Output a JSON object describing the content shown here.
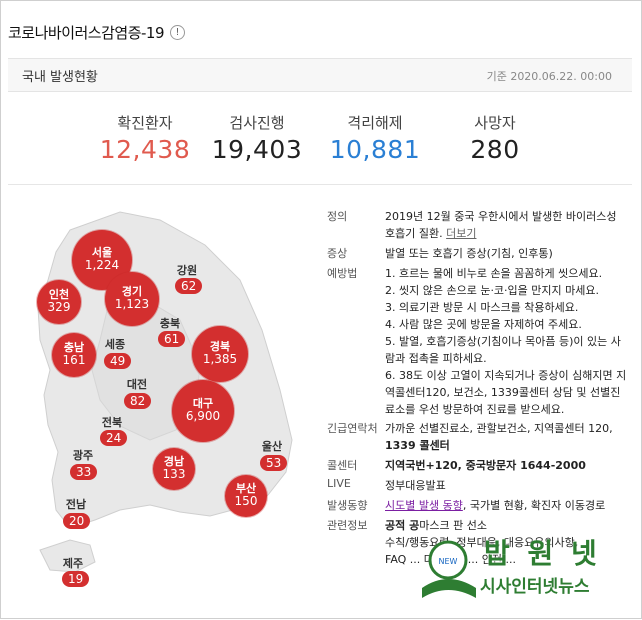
{
  "header": {
    "title": "코로나바이러스감염증-19",
    "info_icon": "!"
  },
  "subhead": {
    "label": "국내 발생현황",
    "date": "기준 2020.06.22. 00:00"
  },
  "stats": [
    {
      "label": "확진환자",
      "value": "12,438",
      "color": "#e05a4e"
    },
    {
      "label": "검사진행",
      "value": "19,403",
      "color": "#222222"
    },
    {
      "label": "격리해제",
      "value": "10,881",
      "color": "#2a7fd4"
    },
    {
      "label": "사망자",
      "value": "280",
      "color": "#222222"
    }
  ],
  "map": {
    "bubbles": [
      {
        "name": "서울",
        "count": "1,224"
      },
      {
        "name": "인천",
        "count": "329"
      },
      {
        "name": "경기",
        "count": "1,123"
      },
      {
        "name": "충남",
        "count": "161"
      },
      {
        "name": "경북",
        "count": "1,385"
      },
      {
        "name": "대구",
        "count": "6,900"
      },
      {
        "name": "경남",
        "count": "133"
      },
      {
        "name": "부산",
        "count": "150"
      }
    ],
    "badges": [
      {
        "name": "강원",
        "count": "62"
      },
      {
        "name": "충북",
        "count": "61"
      },
      {
        "name": "세종",
        "count": "49"
      },
      {
        "name": "대전",
        "count": "82"
      },
      {
        "name": "전북",
        "count": "24"
      },
      {
        "name": "울산",
        "count": "53"
      },
      {
        "name": "광주",
        "count": "33"
      },
      {
        "name": "전남",
        "count": "20"
      },
      {
        "name": "제주",
        "count": "19"
      }
    ]
  },
  "info": {
    "definition": {
      "key": "정의",
      "text": "2019년 12월 중국 우한시에서 발생한 바이러스성 호흡기 질환.",
      "more": "더보기"
    },
    "symptom": {
      "key": "증상",
      "text": "발열 또는 호흡기 증상(기침, 인후통)"
    },
    "prevention": {
      "key": "예방법",
      "items": [
        "1. 흐르는 물에 비누로 손을 꼼꼼하게 씻으세요.",
        "2. 씻지 않은 손으로 눈·코·입을 만지지 마세요.",
        "3. 의료기관 방문 시 마스크를 착용하세요.",
        "4. 사람 많은 곳에 방문을 자제하여 주세요.",
        "5. 발열, 호흡기증상(기침이나 목아픔 등)이 있는 사람과 접촉을 피하세요.",
        "6. 38도 이상 고열이 지속되거나 증상이 심해지면 지역콜센터120, 보건소, 1339콜센터 상담 및 선별진료소를 우선 방문하여 진료를 받으세요."
      ]
    },
    "contact": {
      "key": "긴급연락처",
      "text": "가까운 선별진료소, 관할보건소, 지역콜센터 120,",
      "bold": "1339 콜센터"
    },
    "callcenter": {
      "key": "콜센터",
      "text": "지역국번+120, 중국방문자 1644-2000"
    },
    "live": {
      "key": "LIVE",
      "text": "정부대응발표"
    },
    "trend": {
      "key": "발생동향",
      "link": "시도별 발생 동향",
      "rest": ", 국가별 현황, 확진자 이동경로"
    },
    "related": {
      "key": "관련정보",
      "line1a": "공적 공",
      "line1b": "마스크 ",
      "line1c": "판 ",
      "line1d": "선",
      "line1e": "소",
      "line2": "수칙/행동요령, 정부대응, 대응요유의사항,",
      "line3": "FAQ ... 다함께예 ... 안전 ..."
    }
  },
  "watermark": {
    "text1": "밥 원 넷",
    "text2": "시사인터넷뉴스"
  }
}
